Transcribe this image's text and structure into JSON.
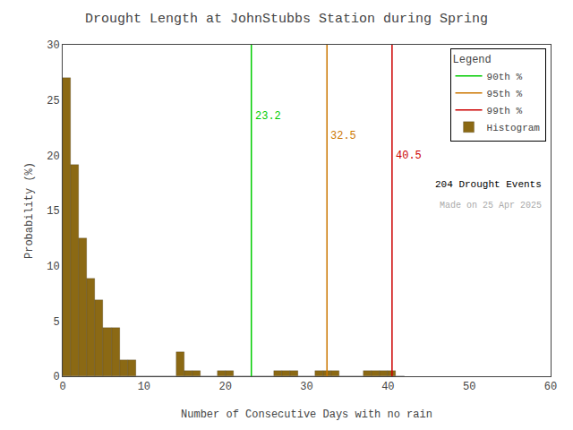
{
  "chart_data": {
    "type": "histogram",
    "title": "Drought Length at JohnStubbs Station during Spring",
    "x_label": "Number of Consecutive Days with no rain",
    "y_label": "Probability (%)",
    "bins": [
      0,
      1,
      2,
      3,
      4,
      5,
      6,
      7,
      8,
      9,
      10,
      11,
      12,
      13,
      14,
      15,
      16,
      17,
      18,
      19,
      20,
      21,
      22,
      23,
      24,
      25,
      26,
      27,
      28,
      29,
      30,
      31,
      32,
      33,
      34,
      35,
      36,
      37,
      38,
      39,
      40,
      41,
      42
    ],
    "values": [
      27.0,
      19.1,
      12.5,
      8.8,
      6.9,
      4.4,
      4.4,
      1.5,
      1.5,
      0.0,
      0.0,
      0.0,
      0.0,
      0.0,
      2.2,
      0.5,
      0.5,
      0.0,
      0.0,
      0.5,
      0.5,
      0.0,
      0.0,
      0.0,
      0.0,
      0.0,
      0.5,
      0.5,
      0.5,
      0.0,
      0.0,
      0.5,
      0.5,
      0.5,
      0.0,
      0.0,
      0.0,
      0.5,
      0.5,
      0.5,
      0.5,
      0.0
    ],
    "name": "Histogram",
    "color": "#8B6914",
    "lines": [
      {
        "name": "90th %",
        "x": 23.2,
        "label": "23.2",
        "color": "#00CC00"
      },
      {
        "name": "95th %",
        "x": 32.5,
        "label": "32.5",
        "color": "#CC7700"
      },
      {
        "name": "99th %",
        "x": 40.5,
        "label": "40.5",
        "color": "#CC0000"
      }
    ],
    "legend_title": "Legend",
    "legend": "upper right",
    "annotations": [
      "204 Drought Events",
      "Made on 25 Apr 2025"
    ],
    "xlim": [
      0,
      60
    ],
    "ylim": [
      0,
      30
    ],
    "xticks": [
      0,
      10,
      20,
      30,
      40,
      50,
      60
    ],
    "yticks": [
      0,
      5,
      10,
      15,
      20,
      25,
      30
    ],
    "grid": false
  }
}
